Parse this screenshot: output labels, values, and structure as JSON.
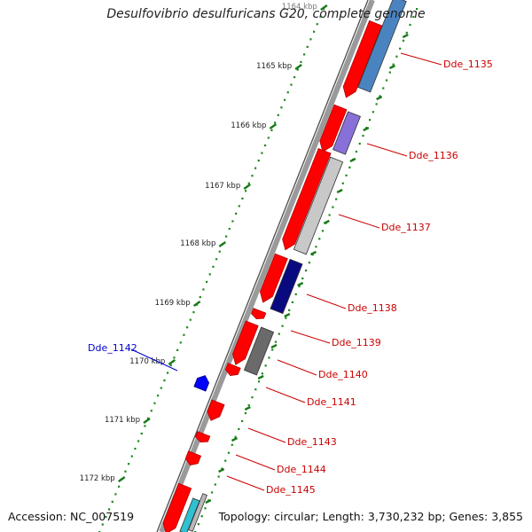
{
  "title": "Desulfovibrio desulfuricans G20, complete genome",
  "footer": {
    "accession": "Accession: NC_007519",
    "topology": "Topology: circular; Length: 3,730,232 bp; Genes: 3,855"
  },
  "ruler": [
    {
      "label": "1164 kbp",
      "partial": true
    },
    {
      "label": "1165 kbp"
    },
    {
      "label": "1166 kbp"
    },
    {
      "label": "1167 kbp"
    },
    {
      "label": "1168 kbp"
    },
    {
      "label": "1169 kbp"
    },
    {
      "label": "1170 kbp"
    },
    {
      "label": "1171 kbp"
    },
    {
      "label": "1172 kbp"
    }
  ],
  "colors": {
    "cds": "#ff0000",
    "label_red": "#cc0000",
    "label_blue": "#0000cc",
    "backbone": "#808080",
    "tick": "#1a7a1a",
    "dot": "#1a8a1a",
    "blue_gene": "#0000ff"
  },
  "genes": [
    {
      "label": "Dde_1135",
      "strand": "forward",
      "cog_color": "#4a84c0"
    },
    {
      "label": "Dde_1136",
      "strand": "forward",
      "cog_color": "#8870d8"
    },
    {
      "label": "Dde_1137",
      "strand": "forward",
      "cog_color": "#c8c8c8"
    },
    {
      "label": "Dde_1138",
      "strand": "forward",
      "cog_color": "#0a0a80"
    },
    {
      "label": "Dde_1139",
      "strand": "forward",
      "cog_color": null
    },
    {
      "label": "Dde_1140",
      "strand": "forward",
      "cog_color": "#6a6a6a"
    },
    {
      "label": "Dde_1141",
      "strand": "forward",
      "cog_color": null
    },
    {
      "label": "Dde_1142",
      "strand": "reverse",
      "cog_color": null
    },
    {
      "label": "Dde_1143",
      "strand": "forward",
      "cog_color": null
    },
    {
      "label": "Dde_1144",
      "strand": "forward",
      "cog_color": null
    },
    {
      "label": "Dde_1145",
      "strand": "forward",
      "cog_color": "#30c0d0"
    }
  ]
}
